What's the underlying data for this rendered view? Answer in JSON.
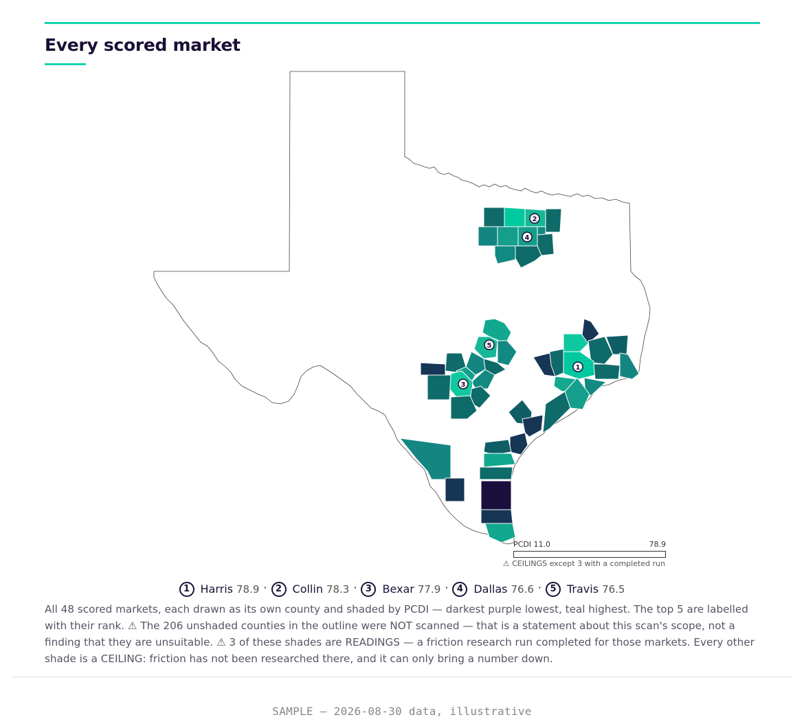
{
  "header": {
    "title": "Every scored market"
  },
  "map": {
    "colors": {
      "low": "#1b0f3d",
      "high": "#00c9a0",
      "outline": "#444444",
      "border": "#ffffff"
    },
    "outline_name": "texas-state-outline"
  },
  "legend": {
    "label": "PCDI",
    "min": "11.0",
    "max": "78.9",
    "min_label": "PCDI 11.0",
    "max_label": "78.9",
    "note": "⚠ CEILINGS except 3 with a completed run"
  },
  "ranking": {
    "items": [
      {
        "rank": "1",
        "name": "Harris",
        "score": "78.9"
      },
      {
        "rank": "2",
        "name": "Collin",
        "score": "78.3"
      },
      {
        "rank": "3",
        "name": "Bexar",
        "score": "77.9"
      },
      {
        "rank": "4",
        "name": "Dallas",
        "score": "76.6"
      },
      {
        "rank": "5",
        "name": "Travis",
        "score": "76.5"
      }
    ],
    "separator": "·"
  },
  "caption": {
    "part1": "All 48 scored markets, each drawn as its own county and shaded by PCDI — darkest purple lowest, teal highest. The top 5 are labelled with their rank.",
    "warn1_glyph": "⚠",
    "part2": "The 206 unshaded counties in the outline were NOT scanned — that is a statement about this scan's scope, not a finding that they are unsuitable.",
    "warn2_glyph": "⚠",
    "part3": "3 of these shades are READINGS — a friction research run completed for those markets. Every other shade is a CEILING: friction has not been researched there, and it can only bring a number down."
  },
  "footer": {
    "text": "SAMPLE — 2026-08-30 data, illustrative"
  }
}
